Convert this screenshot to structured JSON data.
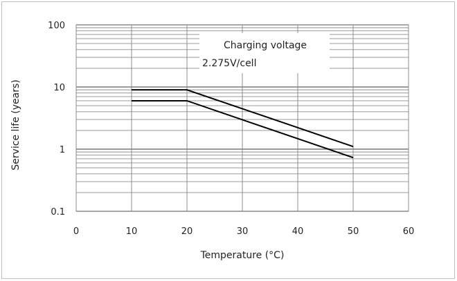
{
  "chart_data": {
    "type": "line",
    "title": "",
    "xlabel": "Temperature (°C)",
    "ylabel": "Service life (years)",
    "xlim": [
      0,
      60
    ],
    "ylim": [
      0.1,
      100
    ],
    "yscale": "log",
    "xticks": [
      0,
      10,
      20,
      30,
      40,
      50,
      60
    ],
    "xtick_labels": [
      "0",
      "10",
      "20",
      "30",
      "40",
      "50",
      "60"
    ],
    "yticks": [
      0.1,
      1,
      10,
      100
    ],
    "ytick_labels": [
      "0.1",
      "1",
      "10",
      "100"
    ],
    "grid": true,
    "legend": false,
    "annotation": [
      "Charging voltage",
      "2.275V/cell"
    ],
    "series": [
      {
        "x": [
          10,
          20,
          50
        ],
        "y": [
          9,
          9,
          1.1
        ]
      },
      {
        "x": [
          10,
          20,
          50
        ],
        "y": [
          6,
          6,
          0.73
        ]
      }
    ],
    "colors": {
      "line": "#000000",
      "grid": "#8c8c8c",
      "frame": "#bfbfbf"
    }
  }
}
